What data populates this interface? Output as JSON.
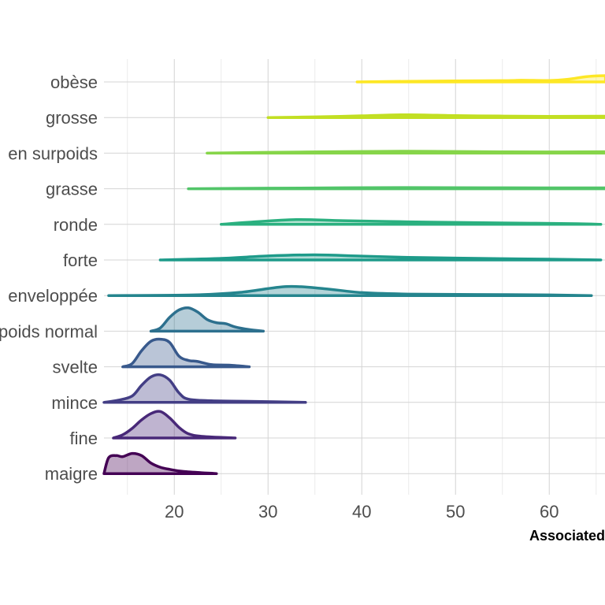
{
  "chart_data": {
    "type": "ridgeline",
    "xlabel": "Associated",
    "x_ticks": [
      20,
      30,
      40,
      50,
      60
    ],
    "xlim": [
      12.5,
      65.5
    ],
    "grid": true,
    "categories": [
      "obèse",
      "grosse",
      "en surpoids",
      "grasse",
      "ronde",
      "forte",
      "enveloppée",
      "poids normal",
      "svelte",
      "mince",
      "fine",
      "maigre"
    ],
    "series": [
      {
        "category": "obèse",
        "range": [
          39.5,
          66
        ],
        "color": "#fde725",
        "fill_opacity": 0.35,
        "density": [
          [
            39.5,
            0
          ],
          [
            45,
            0.6
          ],
          [
            55,
            1.2
          ],
          [
            57,
            1.6
          ],
          [
            60,
            1.3
          ],
          [
            62,
            2.5
          ],
          [
            64,
            5
          ],
          [
            66,
            6
          ]
        ]
      },
      {
        "category": "grosse",
        "range": [
          30,
          66
        ],
        "color": "#c2df23",
        "fill_opacity": 0.35,
        "density": [
          [
            30,
            0
          ],
          [
            35,
            0.6
          ],
          [
            40,
            1.6
          ],
          [
            45,
            2.6
          ],
          [
            50,
            1.8
          ],
          [
            55,
            1.4
          ],
          [
            60,
            1.1
          ],
          [
            66,
            1.3
          ]
        ]
      },
      {
        "category": "en surpoids",
        "range": [
          23.5,
          66
        ],
        "color": "#86d549",
        "fill_opacity": 0.35,
        "density": [
          [
            23.5,
            0
          ],
          [
            30,
            0.8
          ],
          [
            38,
            1.4
          ],
          [
            45,
            1.8
          ],
          [
            52,
            1.4
          ],
          [
            60,
            1.1
          ],
          [
            66,
            1.3
          ]
        ]
      },
      {
        "category": "grasse",
        "range": [
          21.5,
          66
        ],
        "color": "#52c569",
        "fill_opacity": 0.35,
        "density": [
          [
            21.5,
            0
          ],
          [
            30,
            0.5
          ],
          [
            38,
            0.9
          ],
          [
            45,
            1.1
          ],
          [
            55,
            0.9
          ],
          [
            66,
            0.8
          ]
        ]
      },
      {
        "category": "ronde",
        "range": [
          25,
          65.5
        ],
        "color": "#2ab07f",
        "fill_opacity": 0.35,
        "density": [
          [
            25,
            0
          ],
          [
            28,
            2
          ],
          [
            33,
            4.5
          ],
          [
            38,
            3.5
          ],
          [
            45,
            2.4
          ],
          [
            52,
            1.6
          ],
          [
            58,
            1.1
          ],
          [
            63,
            0.6
          ],
          [
            65.5,
            0
          ]
        ]
      },
      {
        "category": "forte",
        "range": [
          18.5,
          65.5
        ],
        "color": "#1e9b8a",
        "fill_opacity": 0.35,
        "density": [
          [
            18.5,
            0
          ],
          [
            25,
            1.5
          ],
          [
            30,
            3.8
          ],
          [
            35,
            4.8
          ],
          [
            40,
            3.6
          ],
          [
            45,
            2.4
          ],
          [
            50,
            1.8
          ],
          [
            55,
            1.2
          ],
          [
            60,
            0.7
          ],
          [
            65.5,
            0
          ]
        ]
      },
      {
        "category": "enveloppée",
        "range": [
          13,
          64.5
        ],
        "color": "#25858e",
        "fill_opacity": 0.35,
        "density": [
          [
            13,
            0
          ],
          [
            22,
            0.6
          ],
          [
            27,
            3
          ],
          [
            32,
            8.5
          ],
          [
            36,
            6.5
          ],
          [
            40,
            2.8
          ],
          [
            45,
            1.4
          ],
          [
            52,
            1
          ],
          [
            60,
            0.6
          ],
          [
            64.5,
            0
          ]
        ]
      },
      {
        "category": "poids normal",
        "range": [
          17.5,
          29.5
        ],
        "color": "#2d708e",
        "fill_opacity": 0.35,
        "density": [
          [
            17.5,
            0
          ],
          [
            18.5,
            3
          ],
          [
            19.5,
            13
          ],
          [
            20.5,
            20
          ],
          [
            21.5,
            22
          ],
          [
            22.5,
            18
          ],
          [
            23.5,
            11
          ],
          [
            24.5,
            8
          ],
          [
            25.5,
            7
          ],
          [
            26.5,
            4
          ],
          [
            28,
            1.5
          ],
          [
            29.5,
            0
          ]
        ]
      },
      {
        "category": "svelte",
        "range": [
          14.5,
          28
        ],
        "color": "#38598c",
        "fill_opacity": 0.35,
        "density": [
          [
            14.5,
            0
          ],
          [
            15.5,
            3
          ],
          [
            16.5,
            15
          ],
          [
            17.5,
            24
          ],
          [
            18.5,
            26
          ],
          [
            19.5,
            23
          ],
          [
            20.5,
            10
          ],
          [
            21.5,
            6
          ],
          [
            22.5,
            5
          ],
          [
            24,
            2
          ],
          [
            26,
            1.5
          ],
          [
            28,
            0
          ]
        ]
      },
      {
        "category": "mince",
        "range": [
          12.5,
          34
        ],
        "color": "#433e85",
        "fill_opacity": 0.35,
        "density": [
          [
            12.5,
            0
          ],
          [
            14,
            2
          ],
          [
            15.5,
            6
          ],
          [
            16.5,
            16
          ],
          [
            17.5,
            24
          ],
          [
            18.5,
            26
          ],
          [
            19.5,
            21
          ],
          [
            20.5,
            9
          ],
          [
            21.5,
            3
          ],
          [
            24,
            1.5
          ],
          [
            28,
            1
          ],
          [
            34,
            0
          ]
        ]
      },
      {
        "category": "fine",
        "range": [
          13.5,
          26.5
        ],
        "color": "#482878",
        "fill_opacity": 0.35,
        "density": [
          [
            13.5,
            0
          ],
          [
            14.5,
            3
          ],
          [
            15.5,
            9
          ],
          [
            16.5,
            17
          ],
          [
            17.5,
            23
          ],
          [
            18.5,
            25
          ],
          [
            19.5,
            19
          ],
          [
            20.5,
            10
          ],
          [
            21.5,
            4
          ],
          [
            23,
            1.5
          ],
          [
            26.5,
            0
          ]
        ]
      },
      {
        "category": "maigre",
        "range": [
          12.5,
          24.5
        ],
        "color": "#440154",
        "fill_opacity": 0.35,
        "density": [
          [
            12.5,
            0
          ],
          [
            13,
            15
          ],
          [
            13.8,
            17
          ],
          [
            14.5,
            16
          ],
          [
            15.5,
            19
          ],
          [
            16.5,
            17
          ],
          [
            17.5,
            10
          ],
          [
            18.5,
            6
          ],
          [
            19.5,
            4
          ],
          [
            21,
            2
          ],
          [
            24.5,
            0
          ]
        ]
      }
    ]
  }
}
